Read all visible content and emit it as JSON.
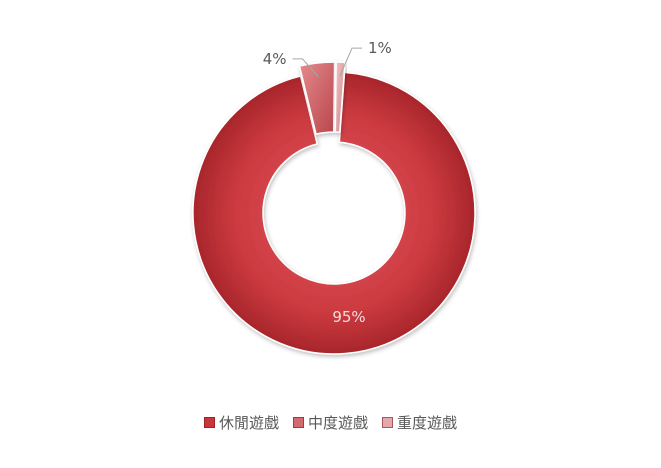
{
  "chart_data": {
    "type": "doughnut",
    "categories": [
      "休閒遊戲",
      "中度遊戲",
      "重度遊戲"
    ],
    "values": [
      95,
      4,
      1
    ],
    "labels": [
      "95%",
      "4%",
      "1%"
    ],
    "colors": [
      "#c9353b",
      "#d46a6e",
      "#e4a8aa"
    ],
    "legend_position": "bottom"
  }
}
